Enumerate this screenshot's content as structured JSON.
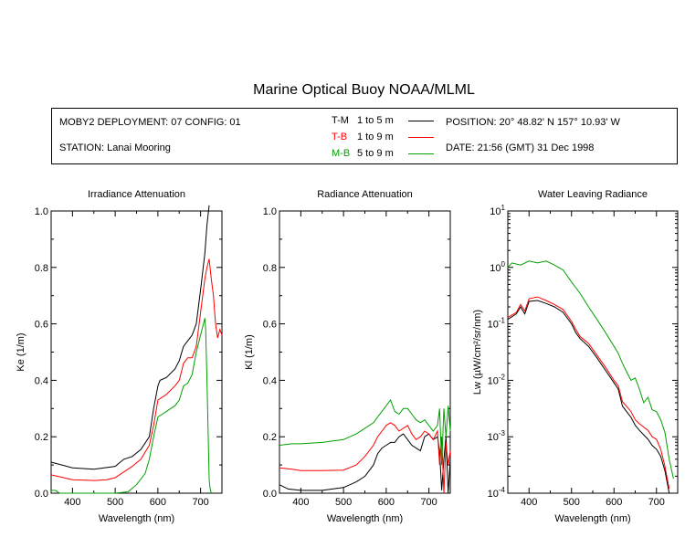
{
  "title": "Marine Optical Buoy NOAA/MLML",
  "info": {
    "deployment": "MOBY2 DEPLOYMENT: 07 CONFIG: 01",
    "station": "STATION: Lanai Mooring",
    "position": "POSITION: 20° 48.82' N   157° 10.93' W",
    "date": "DATE: 21:56 (GMT) 31 Dec 1998"
  },
  "legend": [
    {
      "name": "T-M",
      "range": "1 to 5  m",
      "color": "#000000"
    },
    {
      "name": "T-B",
      "range": "1 to 9  m",
      "color": "#ff0000"
    },
    {
      "name": "M-B",
      "range": "5 to 9  m",
      "color": "#00a000"
    }
  ],
  "chart_data": [
    {
      "type": "line",
      "title": "Irradiance Attenuation",
      "xlabel": "Wavelength (nm)",
      "ylabel": "Ke  (1/m)",
      "xlim": [
        350,
        750
      ],
      "ylim": [
        0,
        1
      ],
      "xticks": [
        "400",
        "500",
        "600",
        "700"
      ],
      "yticks": [
        "0.0",
        "0.2",
        "0.4",
        "0.6",
        "0.8",
        "1.0"
      ],
      "series": [
        {
          "name": "T-M",
          "color": "#000000",
          "x": [
            350,
            400,
            450,
            500,
            520,
            540,
            560,
            580,
            590,
            600,
            605,
            620,
            640,
            650,
            660,
            670,
            680,
            690,
            700,
            710,
            715,
            720
          ],
          "y": [
            0.11,
            0.09,
            0.085,
            0.095,
            0.12,
            0.13,
            0.155,
            0.2,
            0.3,
            0.38,
            0.4,
            0.41,
            0.44,
            0.47,
            0.52,
            0.54,
            0.56,
            0.6,
            0.72,
            0.85,
            0.95,
            1.02
          ]
        },
        {
          "name": "T-B",
          "color": "#ff0000",
          "x": [
            350,
            400,
            450,
            480,
            500,
            520,
            540,
            560,
            580,
            590,
            600,
            610,
            620,
            640,
            650,
            660,
            670,
            680,
            690,
            700,
            710,
            715,
            720,
            725,
            730,
            735,
            740,
            745,
            750
          ],
          "y": [
            0.065,
            0.048,
            0.045,
            0.048,
            0.055,
            0.075,
            0.095,
            0.12,
            0.17,
            0.24,
            0.33,
            0.34,
            0.35,
            0.38,
            0.4,
            0.46,
            0.48,
            0.48,
            0.52,
            0.64,
            0.76,
            0.8,
            0.83,
            0.76,
            0.7,
            0.6,
            0.55,
            0.58,
            0.56
          ]
        },
        {
          "name": "M-B",
          "color": "#00a000",
          "x": [
            350,
            360,
            370,
            400,
            450,
            500,
            530,
            550,
            570,
            580,
            590,
            600,
            610,
            620,
            640,
            650,
            660,
            670,
            680,
            690,
            700,
            710,
            712,
            715,
            718,
            720,
            722,
            725
          ],
          "y": [
            0.01,
            0.01,
            0.0,
            0.0,
            0.0,
            0.0,
            0.005,
            0.03,
            0.07,
            0.12,
            0.2,
            0.27,
            0.28,
            0.29,
            0.31,
            0.33,
            0.38,
            0.39,
            0.42,
            0.5,
            0.56,
            0.62,
            0.58,
            0.4,
            0.2,
            0.05,
            0.02,
            0.0
          ]
        }
      ]
    },
    {
      "type": "line",
      "title": "Radiance Attenuation",
      "xlabel": "Wavelength (nm)",
      "ylabel": "Kl  (1/m)",
      "xlim": [
        350,
        750
      ],
      "ylim": [
        0,
        1
      ],
      "xticks": [
        "400",
        "500",
        "600",
        "700"
      ],
      "yticks": [
        "0.0",
        "0.2",
        "0.4",
        "0.6",
        "0.8",
        "1.0"
      ],
      "series": [
        {
          "name": "T-M",
          "color": "#000000",
          "x": [
            350,
            370,
            400,
            450,
            500,
            530,
            550,
            570,
            580,
            590,
            600,
            610,
            620,
            630,
            640,
            650,
            660,
            670,
            680,
            690,
            700,
            710,
            720,
            725,
            730,
            735,
            740,
            745,
            750
          ],
          "y": [
            0.03,
            0.015,
            0.01,
            0.01,
            0.02,
            0.04,
            0.06,
            0.1,
            0.14,
            0.16,
            0.17,
            0.18,
            0.18,
            0.2,
            0.21,
            0.19,
            0.17,
            0.16,
            0.15,
            0.2,
            0.21,
            0.19,
            0.2,
            0.15,
            0.01,
            0.12,
            0.2,
            0.0,
            0.12
          ]
        },
        {
          "name": "T-B",
          "color": "#ff0000",
          "x": [
            350,
            380,
            400,
            450,
            500,
            530,
            550,
            570,
            580,
            590,
            600,
            610,
            620,
            630,
            640,
            650,
            660,
            670,
            680,
            690,
            700,
            710,
            720,
            725,
            730,
            735,
            740,
            745,
            750
          ],
          "y": [
            0.09,
            0.085,
            0.08,
            0.08,
            0.082,
            0.1,
            0.13,
            0.17,
            0.2,
            0.22,
            0.24,
            0.25,
            0.24,
            0.22,
            0.23,
            0.24,
            0.21,
            0.19,
            0.2,
            0.22,
            0.21,
            0.19,
            0.22,
            0.1,
            0.2,
            0.0,
            0.18,
            0.1,
            0.15
          ]
        },
        {
          "name": "M-B",
          "color": "#00a000",
          "x": [
            350,
            380,
            400,
            450,
            500,
            530,
            550,
            570,
            580,
            590,
            600,
            610,
            620,
            630,
            640,
            650,
            660,
            670,
            680,
            690,
            700,
            710,
            720,
            725,
            730,
            735,
            740,
            745,
            750
          ],
          "y": [
            0.17,
            0.175,
            0.175,
            0.18,
            0.19,
            0.21,
            0.23,
            0.25,
            0.27,
            0.29,
            0.31,
            0.33,
            0.29,
            0.28,
            0.3,
            0.3,
            0.28,
            0.26,
            0.25,
            0.26,
            0.24,
            0.22,
            0.24,
            0.3,
            0.1,
            0.3,
            0.2,
            0.31,
            0.22
          ]
        }
      ]
    },
    {
      "type": "line",
      "title": "Water Leaving Radiance",
      "xlabel": "Wavelength (nm)",
      "ylabel": "Lw  (µW/cm²/sr/nm)",
      "xlim": [
        350,
        750
      ],
      "ylim": [
        0.0001,
        10
      ],
      "yscale": "log",
      "xticks": [
        "400",
        "500",
        "600",
        "700"
      ],
      "yticks": [
        "10^-4",
        "10^-3",
        "10^-2",
        "10^-1",
        "10^0",
        "10^1"
      ],
      "series": [
        {
          "name": "T-M",
          "color": "#000000",
          "x": [
            350,
            370,
            380,
            390,
            400,
            420,
            440,
            460,
            480,
            500,
            510,
            520,
            540,
            560,
            580,
            600,
            610,
            620,
            640,
            650,
            660,
            680,
            690,
            700,
            710,
            720,
            730
          ],
          "y": [
            0.12,
            0.15,
            0.2,
            0.15,
            0.25,
            0.26,
            0.23,
            0.2,
            0.16,
            0.1,
            0.07,
            0.055,
            0.04,
            0.025,
            0.015,
            0.009,
            0.007,
            0.0035,
            0.0022,
            0.0016,
            0.0013,
            0.0009,
            0.0007,
            0.0006,
            0.00045,
            0.00025,
            0.0001
          ]
        },
        {
          "name": "T-B",
          "color": "#ff0000",
          "x": [
            350,
            370,
            380,
            390,
            400,
            420,
            440,
            460,
            480,
            500,
            510,
            520,
            540,
            560,
            580,
            600,
            610,
            620,
            640,
            650,
            660,
            680,
            690,
            700,
            710,
            720,
            730
          ],
          "y": [
            0.13,
            0.16,
            0.22,
            0.17,
            0.28,
            0.3,
            0.26,
            0.22,
            0.18,
            0.11,
            0.08,
            0.06,
            0.045,
            0.028,
            0.017,
            0.01,
            0.008,
            0.0042,
            0.0028,
            0.002,
            0.0017,
            0.0013,
            0.001,
            0.0009,
            0.0006,
            0.0003,
            0.00012
          ]
        },
        {
          "name": "M-B",
          "color": "#00a000",
          "x": [
            350,
            360,
            380,
            400,
            420,
            440,
            460,
            480,
            500,
            520,
            540,
            560,
            580,
            600,
            610,
            620,
            630,
            640,
            650,
            660,
            670,
            680,
            690,
            700,
            710,
            720,
            730,
            740
          ],
          "y": [
            1.0,
            1.2,
            1.1,
            1.3,
            1.2,
            1.3,
            1.1,
            0.9,
            0.55,
            0.35,
            0.2,
            0.12,
            0.07,
            0.04,
            0.03,
            0.02,
            0.014,
            0.01,
            0.011,
            0.007,
            0.004,
            0.005,
            0.003,
            0.0028,
            0.002,
            0.0012,
            0.0004,
            0.00018
          ]
        }
      ]
    }
  ]
}
